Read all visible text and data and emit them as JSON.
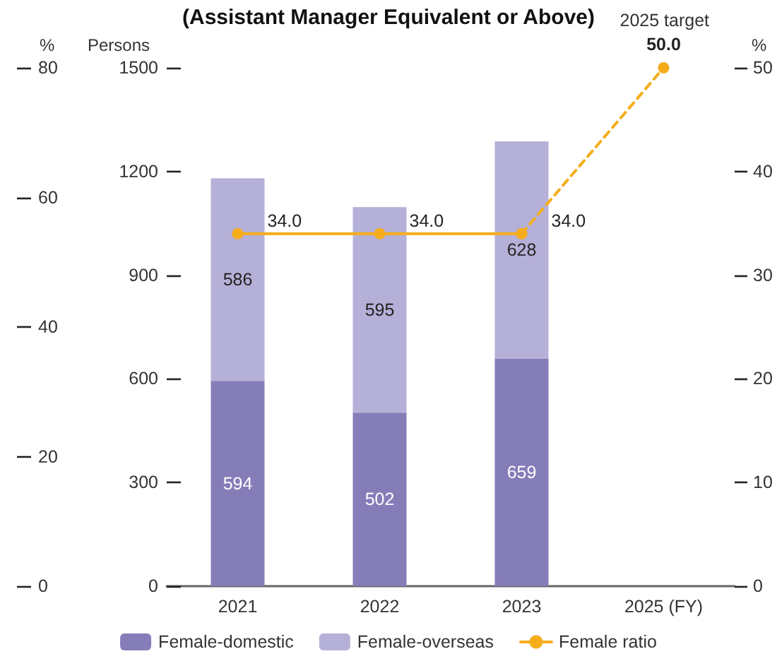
{
  "chart_data": {
    "type": "bar",
    "title": "(Assistant Manager Equivalent or Above)",
    "ylabel": "Persons",
    "y2label": "%",
    "y3label": "%",
    "categories": [
      "2021",
      "2022",
      "2023",
      "2025 (FY)"
    ],
    "stacked": true,
    "series": [
      {
        "name": "Female-domestic",
        "color": "#857db8",
        "values": [
          594,
          502,
          659,
          null
        ],
        "value_labels": [
          "594",
          "502",
          "659",
          null
        ]
      },
      {
        "name": "Female-overseas",
        "color": "#b5b0d7",
        "values": [
          586,
          595,
          628,
          null
        ],
        "value_labels": [
          "586",
          "595",
          "628",
          null
        ]
      },
      {
        "name": "Female ratio",
        "type": "line",
        "axis": "y2",
        "color": "#f5ad1c",
        "values": [
          34.0,
          34.0,
          34.0,
          null
        ],
        "value_labels": [
          "34.0",
          "34.0",
          "34.0",
          null
        ],
        "marker": "circle",
        "line_style": "solid"
      },
      {
        "type": "line",
        "axis": "y2",
        "color": "#f5ad1c",
        "values": [
          null,
          null,
          34.0,
          50.0
        ],
        "value_labels": [
          null,
          null,
          null,
          "50.0"
        ],
        "marker": "circle",
        "line_style": "dashed"
      }
    ],
    "ylim": [
      0,
      1500
    ],
    "yticks": [
      0,
      300,
      600,
      900,
      1200,
      1500
    ],
    "y2lim": [
      0,
      50
    ],
    "y2ticks": [
      0,
      10,
      20,
      30,
      40,
      50
    ],
    "y3lim": [
      0,
      80
    ],
    "y3ticks": [
      0,
      20,
      40,
      60,
      80
    ],
    "annotations": [
      "2025 target"
    ],
    "grid": false,
    "legend": "bottom"
  }
}
